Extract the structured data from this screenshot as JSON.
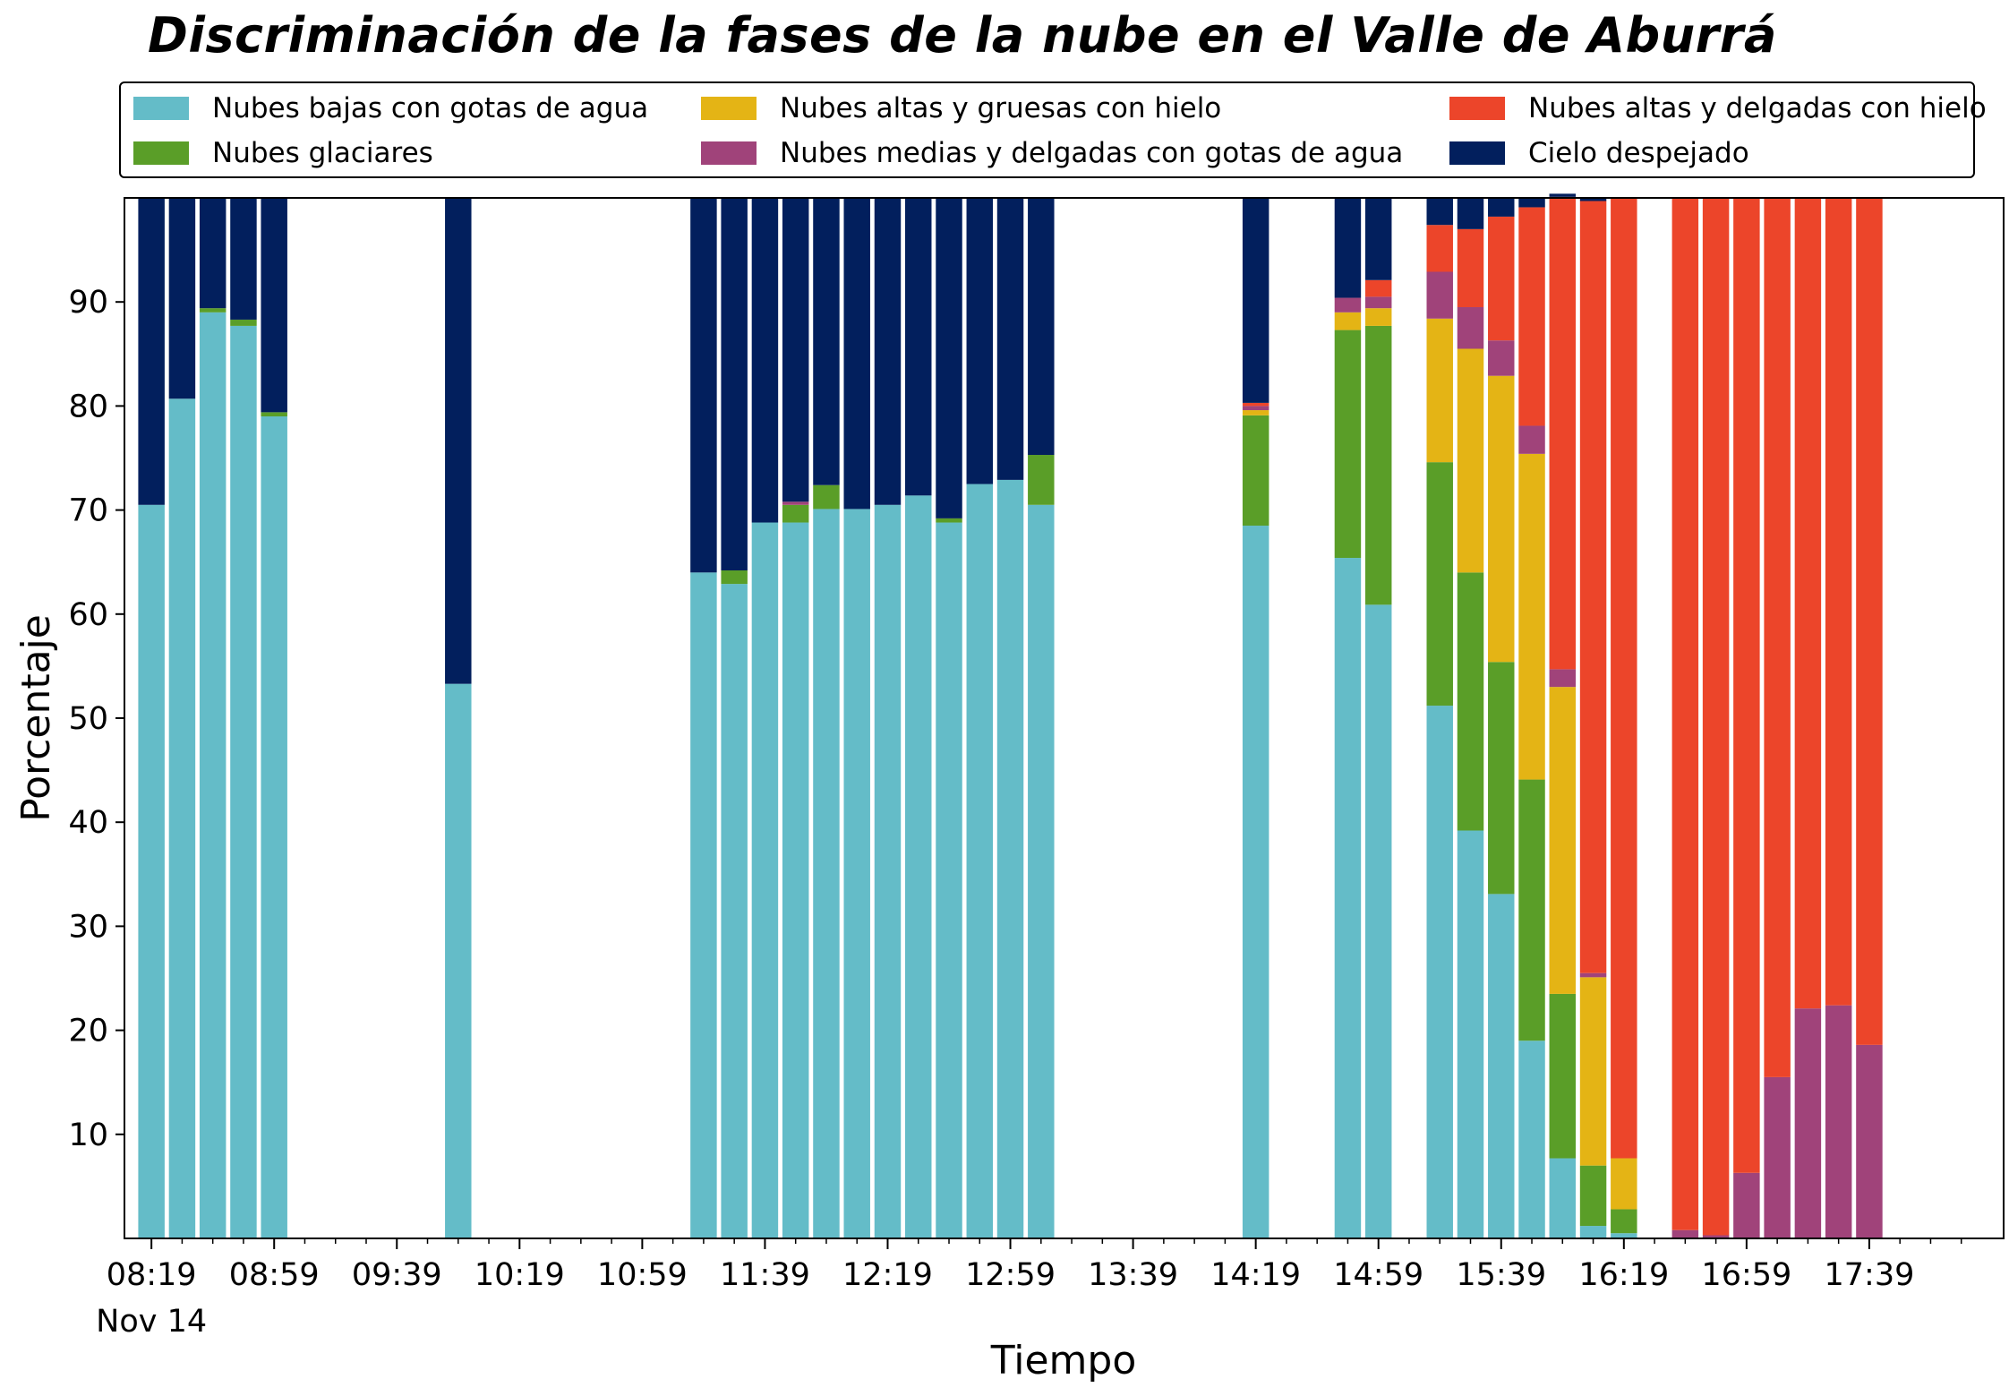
{
  "chart_data": {
    "type": "bar",
    "stacked": true,
    "title": "Discriminación de la fases de la nube en el Valle de Aburrá",
    "xlabel": "Tiempo",
    "ylabel": "Porcentaje",
    "ylim": [
      0,
      100
    ],
    "yticks": [
      10,
      20,
      30,
      40,
      50,
      60,
      70,
      80,
      90
    ],
    "xlim_minutes": [
      0,
      595
    ],
    "xticks": [
      {
        "t": 0,
        "label": "08:19",
        "sublabel": "Nov 14"
      },
      {
        "t": 40,
        "label": "08:59"
      },
      {
        "t": 80,
        "label": "09:39"
      },
      {
        "t": 120,
        "label": "10:19"
      },
      {
        "t": 160,
        "label": "10:59"
      },
      {
        "t": 200,
        "label": "11:39"
      },
      {
        "t": 240,
        "label": "12:19"
      },
      {
        "t": 280,
        "label": "12:59"
      },
      {
        "t": 320,
        "label": "13:39"
      },
      {
        "t": 360,
        "label": "14:19"
      },
      {
        "t": 400,
        "label": "14:59"
      },
      {
        "t": 440,
        "label": "15:39"
      },
      {
        "t": 480,
        "label": "16:19"
      },
      {
        "t": 520,
        "label": "16:59"
      },
      {
        "t": 560,
        "label": "17:39"
      }
    ],
    "grid": false,
    "legend": "top",
    "series": [
      {
        "name": "Nubes bajas con gotas de agua",
        "color": "#64bcc8"
      },
      {
        "name": "Nubes glaciares",
        "color": "#5a9e28"
      },
      {
        "name": "Nubes altas y gruesas con hielo",
        "color": "#e4b415"
      },
      {
        "name": "Nubes medias y delgadas con gotas de agua",
        "color": "#a0437a"
      },
      {
        "name": "Nubes altas y delgadas con hielo",
        "color": "#ec452a"
      },
      {
        "name": "Cielo despejado",
        "color": "#021f5d"
      }
    ],
    "bars": [
      {
        "t": 0,
        "values": [
          70.5,
          0,
          0,
          0,
          0,
          29.5
        ]
      },
      {
        "t": 10,
        "values": [
          80.7,
          0,
          0,
          0,
          0,
          19.3
        ]
      },
      {
        "t": 20,
        "values": [
          89.0,
          0.4,
          0,
          0,
          0,
          10.6
        ]
      },
      {
        "t": 30,
        "values": [
          87.7,
          0.6,
          0,
          0,
          0,
          11.7
        ]
      },
      {
        "t": 40,
        "values": [
          79.0,
          0.4,
          0,
          0,
          0,
          20.6
        ]
      },
      {
        "t": 100,
        "values": [
          53.3,
          0,
          0,
          0,
          0,
          46.7
        ]
      },
      {
        "t": 180,
        "values": [
          64.0,
          0,
          0,
          0,
          0,
          36.0
        ]
      },
      {
        "t": 190,
        "values": [
          62.9,
          1.3,
          0,
          0,
          0,
          35.8
        ]
      },
      {
        "t": 200,
        "values": [
          68.8,
          0,
          0,
          0,
          0,
          31.2
        ]
      },
      {
        "t": 210,
        "values": [
          68.8,
          1.7,
          0,
          0.3,
          0,
          29.2
        ]
      },
      {
        "t": 220,
        "values": [
          70.1,
          2.3,
          0,
          0,
          0,
          27.6
        ]
      },
      {
        "t": 230,
        "values": [
          70.1,
          0,
          0,
          0,
          0,
          29.9
        ]
      },
      {
        "t": 240,
        "values": [
          70.5,
          0,
          0,
          0,
          0,
          29.5
        ]
      },
      {
        "t": 250,
        "values": [
          71.4,
          0,
          0,
          0,
          0,
          28.6
        ]
      },
      {
        "t": 260,
        "values": [
          68.8,
          0.4,
          0,
          0,
          0,
          30.8
        ]
      },
      {
        "t": 270,
        "values": [
          72.5,
          0,
          0,
          0,
          0,
          27.5
        ]
      },
      {
        "t": 280,
        "values": [
          72.9,
          0,
          0,
          0,
          0,
          27.1
        ]
      },
      {
        "t": 290,
        "values": [
          70.5,
          4.8,
          0,
          0,
          0,
          24.7
        ]
      },
      {
        "t": 360,
        "values": [
          68.5,
          10.6,
          0.5,
          0.4,
          0.3,
          19.7
        ]
      },
      {
        "t": 390,
        "values": [
          65.4,
          21.9,
          1.7,
          1.4,
          0,
          9.6
        ]
      },
      {
        "t": 400,
        "values": [
          60.9,
          26.8,
          1.7,
          1.1,
          1.6,
          7.9
        ]
      },
      {
        "t": 420,
        "values": [
          51.2,
          23.4,
          13.8,
          4.5,
          4.5,
          2.6
        ]
      },
      {
        "t": 430,
        "values": [
          39.2,
          24.8,
          21.5,
          4.0,
          7.5,
          3.0
        ]
      },
      {
        "t": 440,
        "values": [
          33.1,
          22.3,
          27.5,
          3.4,
          11.9,
          1.8
        ]
      },
      {
        "t": 450,
        "values": [
          19.0,
          25.1,
          31.3,
          2.7,
          21.0,
          0.9
        ]
      },
      {
        "t": 460,
        "values": [
          7.7,
          15.8,
          29.5,
          1.7,
          45.4,
          0.3
        ]
      },
      {
        "t": 470,
        "values": [
          1.2,
          5.8,
          18.1,
          0.4,
          74.2,
          0.3
        ]
      },
      {
        "t": 480,
        "values": [
          0.5,
          2.3,
          4.9,
          0,
          92.3,
          0
        ]
      },
      {
        "t": 500,
        "values": [
          0,
          0,
          0,
          0.8,
          99.2,
          0
        ]
      },
      {
        "t": 510,
        "values": [
          0,
          0,
          0,
          0.3,
          99.7,
          0
        ]
      },
      {
        "t": 520,
        "values": [
          0,
          0,
          0,
          6.3,
          93.7,
          0
        ]
      },
      {
        "t": 530,
        "values": [
          0,
          0,
          0,
          15.5,
          84.5,
          0
        ]
      },
      {
        "t": 540,
        "values": [
          0,
          0,
          0,
          22.1,
          77.9,
          0
        ]
      },
      {
        "t": 550,
        "values": [
          0,
          0,
          0,
          22.4,
          77.6,
          0
        ]
      },
      {
        "t": 560,
        "values": [
          0,
          0,
          0,
          18.6,
          81.4,
          0
        ]
      }
    ]
  }
}
